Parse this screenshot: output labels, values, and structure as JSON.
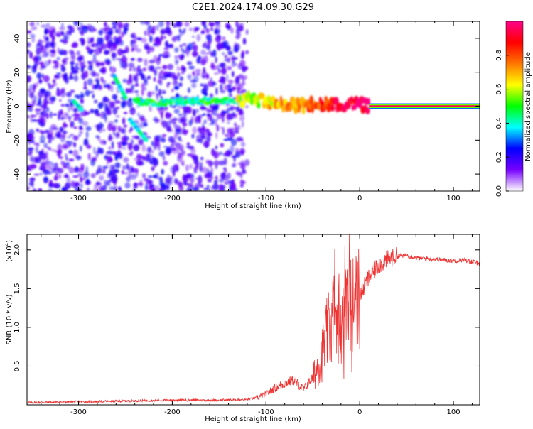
{
  "title": "C2E1.2024.174.09.30.G29",
  "chart_data": [
    {
      "type": "heatmap",
      "xlabel": "Height of straight line (km)",
      "ylabel": "Frequency (Hz)",
      "xlim": [
        -355,
        128
      ],
      "ylim": [
        -50,
        50
      ],
      "xticks": [
        -300,
        -200,
        -100,
        0,
        100
      ],
      "yticks": [
        -40,
        -20,
        0,
        20,
        40
      ],
      "xtick_labels": [
        "-300",
        "-200",
        "-100",
        "0",
        "100"
      ],
      "ytick_labels": [
        "-40",
        "-20",
        "0",
        "20",
        "40"
      ],
      "description_series": [
        {
          "x": [
            -340,
            -300,
            -260,
            -220,
            -180,
            -140,
            -120
          ],
          "y": [
            10,
            6,
            4,
            2,
            3,
            3,
            4
          ]
        },
        {
          "x": [
            -120,
            -100,
            -80,
            -60,
            -40,
            -20,
            0,
            10,
            128
          ],
          "y": [
            4,
            3,
            0,
            0,
            2,
            1,
            1,
            0,
            0
          ]
        }
      ],
      "colorbar": {
        "label": "Normalized spectral amplitude",
        "range": [
          0,
          1
        ],
        "ticks": [
          0.0,
          0.2,
          0.4,
          0.6,
          0.8
        ],
        "tick_labels": [
          "0.0",
          "0.2",
          "0.4",
          "0.6",
          "0.8"
        ],
        "colors": [
          "#ffffff",
          "#7700ff",
          "#0000ff",
          "#00ffff",
          "#00ff00",
          "#ffff00",
          "#ff7700",
          "#ff0000",
          "#ff0088"
        ]
      }
    },
    {
      "type": "line",
      "xlabel": "Height of straight line (km)",
      "ylabel": "SNR (10 * v/v)",
      "yscale_label": "(x10",
      "yscale_exp": "4",
      "yscale_close": ")",
      "xlim": [
        -355,
        128
      ],
      "ylim": [
        0,
        2.2
      ],
      "xticks": [
        -300,
        -200,
        -100,
        0,
        100
      ],
      "yticks": [
        0.5,
        1.0,
        1.5,
        2.0
      ],
      "xtick_labels": [
        "-300",
        "-200",
        "-100",
        "0",
        "100"
      ],
      "ytick_labels": [
        "0.5",
        "1.0",
        "1.5",
        "2.0"
      ],
      "color": "#ee3333",
      "series": [
        {
          "x": [
            -355,
            -300,
            -250,
            -200,
            -150,
            -120,
            -110,
            -100,
            -95,
            -90,
            -80,
            -70,
            -60,
            -50,
            -40,
            -35,
            -30,
            -25,
            -20,
            -15,
            -12,
            -10,
            -8,
            -5,
            0,
            10,
            20,
            30,
            40,
            50,
            60,
            80,
            100,
            110,
            120,
            128
          ],
          "y": [
            0.03,
            0.04,
            0.05,
            0.06,
            0.06,
            0.07,
            0.09,
            0.13,
            0.18,
            0.22,
            0.28,
            0.32,
            0.2,
            0.35,
            0.65,
            0.9,
            1.05,
            1.25,
            1.1,
            1.45,
            1.55,
            1.5,
            1.0,
            1.3,
            1.4,
            1.65,
            1.8,
            1.88,
            1.92,
            1.93,
            1.9,
            1.88,
            1.86,
            1.87,
            1.85,
            1.82
          ]
        }
      ]
    }
  ]
}
